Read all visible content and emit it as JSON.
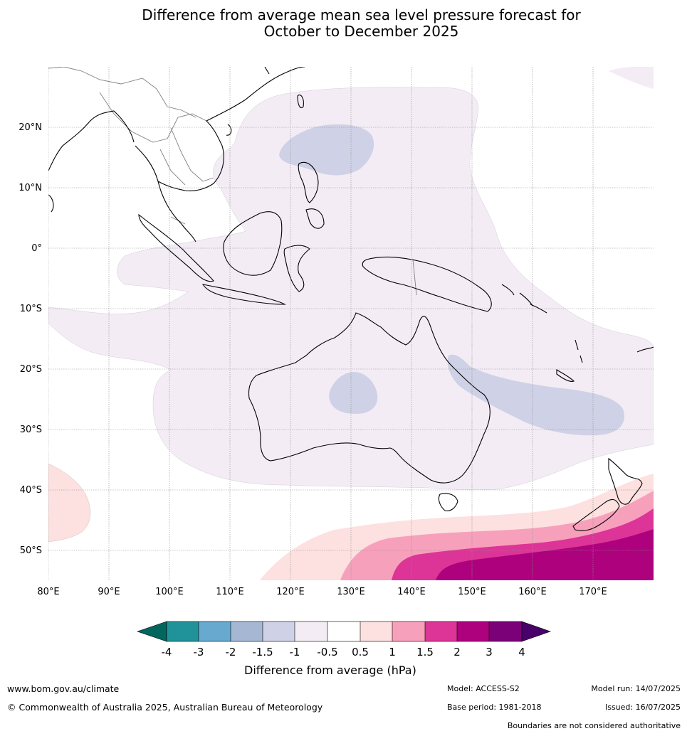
{
  "title": {
    "line1": "Difference from average mean sea level pressure forecast for",
    "line2": "October to December 2025"
  },
  "map": {
    "lat_labels": [
      "20°N",
      "10°N",
      "0°",
      "10°S",
      "20°S",
      "30°S",
      "40°S",
      "50°S"
    ],
    "lon_labels": [
      "80°E",
      "90°E",
      "100°E",
      "110°E",
      "120°E",
      "130°E",
      "140°E",
      "150°E",
      "160°E",
      "170°E"
    ],
    "colors": {
      "coast": "#000000",
      "borders": "#808080",
      "gridlines": "#909090",
      "neg_1_to_0_5": "#f3ecf5",
      "neg_1_5_to_1": "#cfd1e6",
      "pos_0_5_to_1": "#fde0e0",
      "pos_1_to_1_5": "#f7a0bb",
      "pos_1_5_to_2": "#dd3497",
      "pos_2_to_3": "#ae017e"
    }
  },
  "colorbar": {
    "title": "Difference from average (hPa)",
    "tick_labels": [
      "-4",
      "-3",
      "-2",
      "-1.5",
      "-1",
      "-0.5",
      "0.5",
      "1",
      "1.5",
      "2",
      "3",
      "4"
    ],
    "colors": [
      "#01665e",
      "#1f9399",
      "#67a9cf",
      "#a6b7d4",
      "#cfd1e6",
      "#f3ecf5",
      "#ffffff",
      "#fde0e0",
      "#f7a0bb",
      "#dd3497",
      "#ae017e",
      "#7a0177",
      "#49006a"
    ]
  },
  "footer": {
    "website": "www.bom.gov.au/climate",
    "copyright": "© Commonwealth of Australia 2025, Australian Bureau of Meteorology",
    "model": "Model: ACCESS-S2",
    "base_period": "Base period: 1981-2018",
    "model_run": "Model run: 14/07/2025",
    "issued": "Issued: 16/07/2025",
    "disclaimer": "Boundaries are not considered authoritative"
  }
}
